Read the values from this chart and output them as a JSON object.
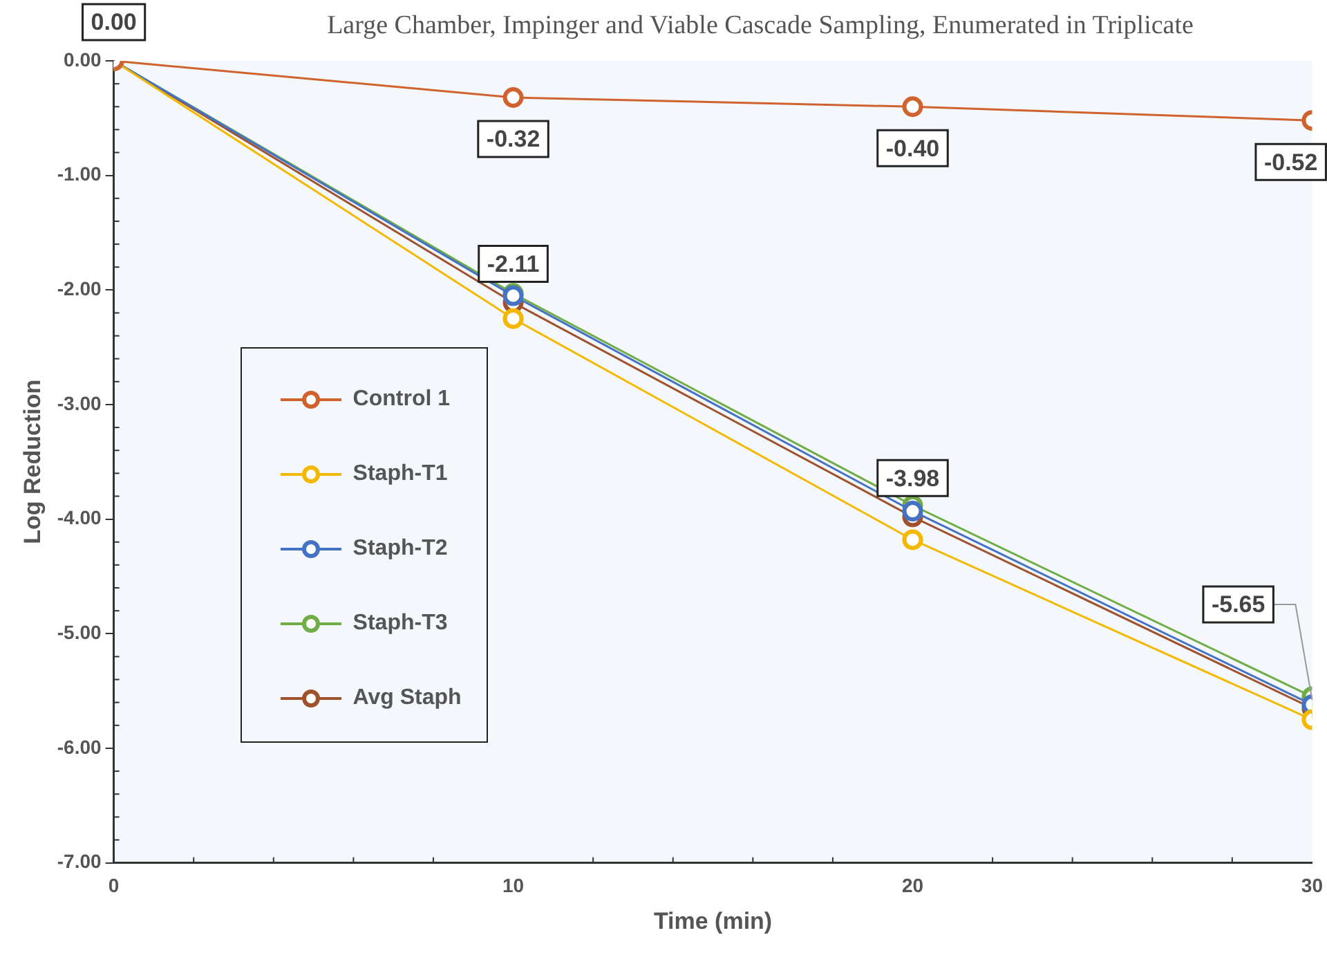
{
  "chart_data": {
    "type": "line",
    "title": "Large Chamber, Impinger and Viable Cascade Sampling, Enumerated in Triplicate",
    "xlabel": "Time (min)",
    "ylabel": "Log Reduction",
    "x": [
      0,
      10,
      20,
      30
    ],
    "xlim": [
      0,
      30
    ],
    "xticks": [
      0,
      10,
      20,
      30
    ],
    "ylim": [
      -7,
      0
    ],
    "yticks": [
      {
        "value": -7,
        "label": "-7.00"
      },
      {
        "value": -6,
        "label": "-6.00"
      },
      {
        "value": -5,
        "label": "-5.00"
      },
      {
        "value": -4,
        "label": "-4.00"
      },
      {
        "value": -3,
        "label": "-3.00"
      },
      {
        "value": -2,
        "label": "-2.00"
      },
      {
        "value": -1,
        "label": "-1.00"
      },
      {
        "value": 0,
        "label": "0.00"
      }
    ],
    "grid": false,
    "legend": "left",
    "marker": "circle",
    "series": [
      {
        "name": "Control 1",
        "color": "#d0622e",
        "values": [
          0,
          -0.32,
          -0.4,
          -0.52
        ],
        "value_labels": [
          null,
          "-0.32",
          "-0.40",
          "-0.52"
        ]
      },
      {
        "name": "Staph-T1",
        "color": "#f5b800",
        "values": [
          0,
          -2.25,
          -4.18,
          -5.75
        ]
      },
      {
        "name": "Staph-T2",
        "color": "#4472c4",
        "values": [
          0,
          -2.05,
          -3.93,
          -5.62
        ]
      },
      {
        "name": "Staph-T3",
        "color": "#70ad47",
        "values": [
          0,
          -2.03,
          -3.88,
          -5.55
        ]
      },
      {
        "name": "Avg Staph",
        "color": "#a0522d",
        "values": [
          0,
          -2.11,
          -3.98,
          -5.65
        ],
        "value_labels": [
          "0.00",
          "-2.11",
          "-3.98",
          "-5.65"
        ]
      }
    ]
  }
}
